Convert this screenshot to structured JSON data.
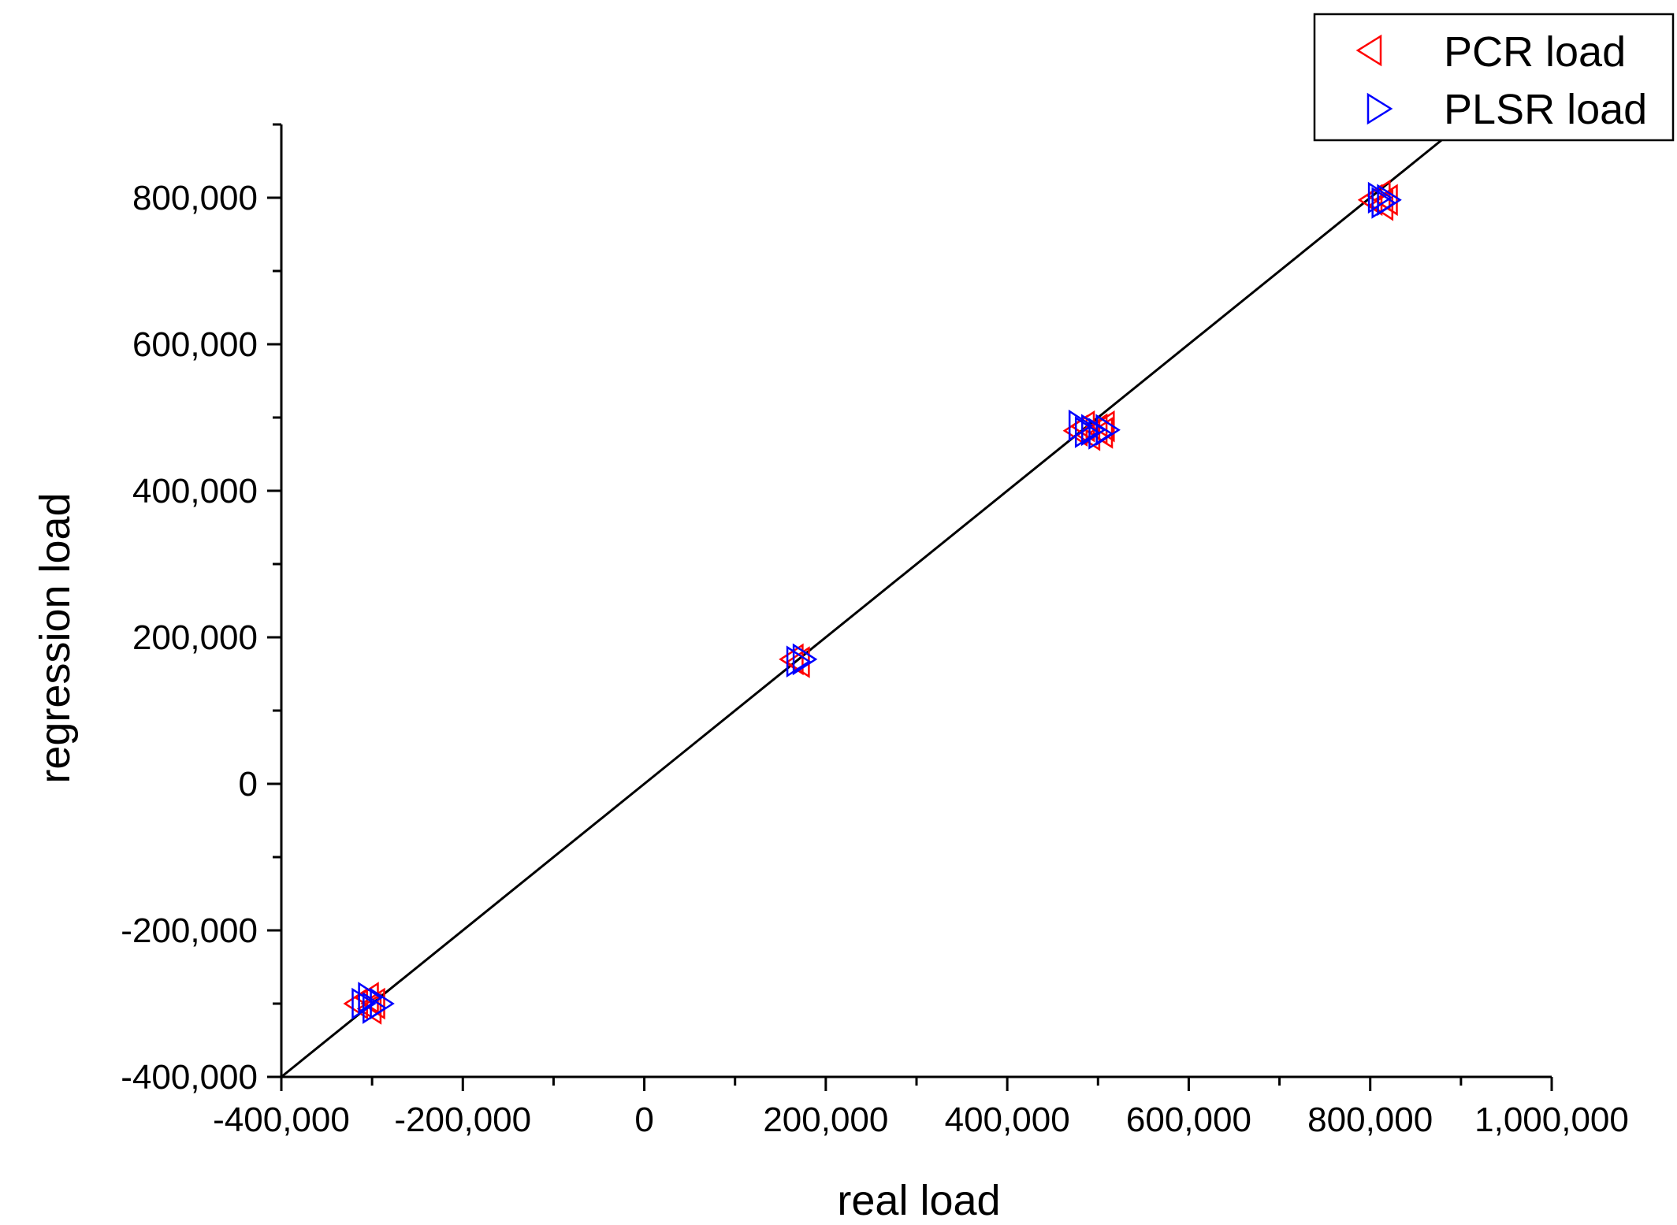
{
  "chart_data": {
    "type": "scatter",
    "title": "",
    "xlabel": "real load",
    "ylabel": "regression load",
    "xlim": [
      -400000,
      1000000
    ],
    "ylim": [
      -400000,
      900000
    ],
    "x_ticks": [
      -400000,
      -200000,
      0,
      200000,
      400000,
      600000,
      800000,
      1000000
    ],
    "x_tick_labels": [
      "-400,000",
      "-200,000",
      "0",
      "200,000",
      "400,000",
      "600,000",
      "800,000",
      "1,000,000"
    ],
    "y_ticks": [
      -400000,
      -200000,
      0,
      200000,
      400000,
      600000,
      800000
    ],
    "y_tick_labels": [
      "-400,000",
      "-200,000",
      "0",
      "200,000",
      "400,000",
      "600,000",
      "800,000"
    ],
    "grid": false,
    "legend_position": "top-right",
    "reference_line": {
      "from": [
        -400000,
        -400000
      ],
      "to": [
        1000000,
        1000000
      ],
      "color": "#000000"
    },
    "series": [
      {
        "name": "PCR load",
        "marker": "triangle-left",
        "color": "#ff0000",
        "points": [
          [
            -315000,
            -300000
          ],
          [
            -303000,
            -292000
          ],
          [
            -300000,
            -307000
          ],
          [
            -296000,
            -300000
          ],
          [
            165000,
            170000
          ],
          [
            172000,
            166000
          ],
          [
            478000,
            482000
          ],
          [
            486000,
            488000
          ],
          [
            492000,
            476000
          ],
          [
            500000,
            484000
          ],
          [
            506000,
            479000
          ],
          [
            508000,
            488000
          ],
          [
            803000,
            797000
          ],
          [
            812000,
            803000
          ],
          [
            815000,
            790000
          ],
          [
            820000,
            797000
          ]
        ]
      },
      {
        "name": "PLSR load",
        "marker": "triangle-right",
        "color": "#0000ff",
        "points": [
          [
            -312000,
            -300000
          ],
          [
            -305000,
            -292000
          ],
          [
            -300000,
            -306000
          ],
          [
            -292000,
            -300000
          ],
          [
            167000,
            167000
          ],
          [
            174000,
            170000
          ],
          [
            478000,
            489000
          ],
          [
            485000,
            480000
          ],
          [
            492000,
            483000
          ],
          [
            500000,
            478000
          ],
          [
            508000,
            483000
          ],
          [
            808000,
            800000
          ],
          [
            812000,
            793000
          ],
          [
            818000,
            797000
          ]
        ]
      }
    ]
  }
}
